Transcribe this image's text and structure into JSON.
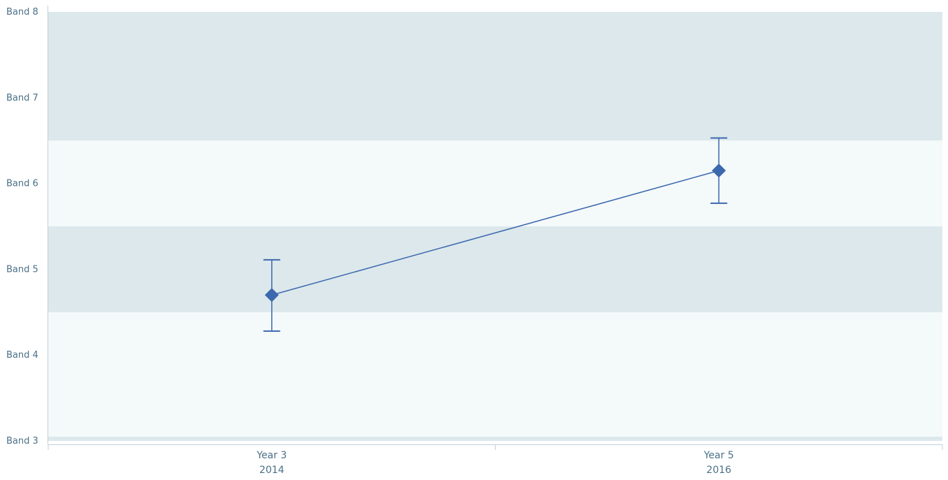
{
  "chart_data": {
    "type": "line",
    "title": "",
    "xlabel": "",
    "ylabel": "",
    "categories": [
      {
        "line1": "Year 3",
        "line2": "2014"
      },
      {
        "line1": "Year 5",
        "line2": "2016"
      }
    ],
    "y_ticks": [
      {
        "value": 3,
        "label": "Band 3"
      },
      {
        "value": 4,
        "label": "Band 4"
      },
      {
        "value": 5,
        "label": "Band 5"
      },
      {
        "value": 6,
        "label": "Band 6"
      },
      {
        "value": 7,
        "label": "Band 7"
      },
      {
        "value": 8,
        "label": "Band 8"
      }
    ],
    "ylim": [
      3,
      8
    ],
    "bands": [
      {
        "from": 3.0,
        "to": 3.05,
        "color": "#dce8ec"
      },
      {
        "from": 3.05,
        "to": 4.5,
        "color": "#f4f9fa"
      },
      {
        "from": 4.5,
        "to": 5.5,
        "color": "#dce8ec"
      },
      {
        "from": 5.5,
        "to": 6.5,
        "color": "#f4f9fa"
      },
      {
        "from": 6.5,
        "to": 8.0,
        "color": "#dce8ec"
      }
    ],
    "series": [
      {
        "values": [
          4.7,
          6.15
        ],
        "error_low": [
          4.28,
          5.77
        ],
        "error_high": [
          5.11,
          6.53
        ],
        "color": "#3c68ad"
      }
    ],
    "grid": false,
    "legend": "none"
  }
}
